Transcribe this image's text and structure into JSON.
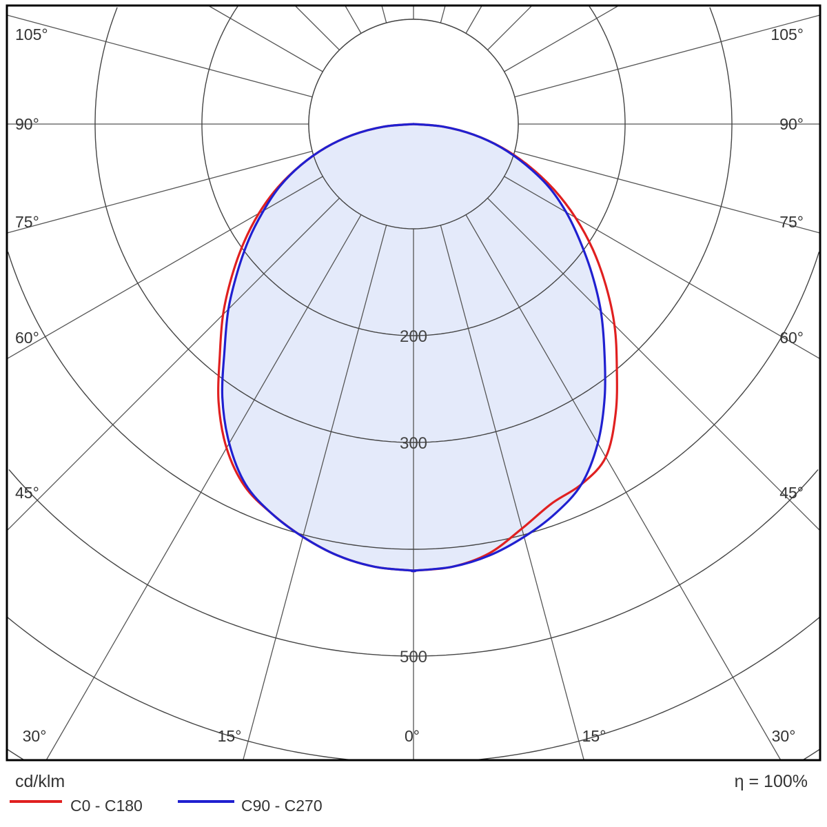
{
  "chart_data": {
    "type": "polar-line",
    "unit": "cd/klm",
    "efficiency_label": "η = 100%",
    "radial_ticks": [
      100,
      200,
      300,
      400,
      500,
      600,
      700,
      800,
      900,
      1000
    ],
    "radial_labels": [
      "200",
      "300",
      "500"
    ],
    "angle_lines_deg": 15,
    "side_angle_labels": [
      "105°",
      "90°",
      "75°",
      "60°",
      "45°"
    ],
    "bottom_angle_labels": [
      "30°",
      "15°",
      "0°",
      "15°",
      "30°"
    ],
    "angles": [
      0,
      5,
      10,
      15,
      20,
      25,
      30,
      35,
      40,
      45,
      50,
      55,
      60,
      65,
      70,
      75,
      80,
      85,
      90
    ],
    "series": [
      {
        "name": "C0 - C180",
        "color": "#e02020",
        "left": [
          418,
          416,
          410,
          400,
          388,
          374,
          350,
          318,
          282,
          252,
          222,
          194,
          167,
          140,
          112,
          85,
          57,
          28,
          0
        ],
        "right": [
          418,
          416,
          408,
          392,
          378,
          372,
          360,
          330,
          296,
          266,
          235,
          205,
          175,
          145,
          115,
          86,
          57,
          28,
          0
        ]
      },
      {
        "name": "C90 - C270",
        "color": "#2020d0",
        "left": [
          418,
          416,
          410,
          400,
          388,
          372,
          345,
          312,
          275,
          245,
          215,
          188,
          162,
          138,
          112,
          85,
          57,
          28,
          0
        ],
        "right": [
          418,
          416,
          410,
          400,
          388,
          372,
          345,
          312,
          278,
          248,
          218,
          190,
          165,
          140,
          112,
          85,
          57,
          28,
          0
        ]
      }
    ],
    "fill_color": "#e4eafa"
  }
}
